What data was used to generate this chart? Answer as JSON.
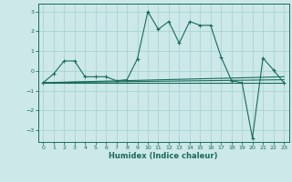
{
  "xlabel": "Humidex (Indice chaleur)",
  "ylabel": "",
  "background_color": "#cce8e8",
  "line_color": "#1a6b5a",
  "grid_color": "#aad4d4",
  "xlim": [
    -0.5,
    23.5
  ],
  "ylim": [
    -3.6,
    3.4
  ],
  "yticks": [
    -3,
    -2,
    -1,
    0,
    1,
    2,
    3
  ],
  "xticks": [
    0,
    1,
    2,
    3,
    4,
    5,
    6,
    7,
    8,
    9,
    10,
    11,
    12,
    13,
    14,
    15,
    16,
    17,
    18,
    19,
    20,
    21,
    22,
    23
  ],
  "series": [
    {
      "x": [
        0,
        1,
        2,
        3,
        4,
        5,
        6,
        7,
        8,
        9,
        10,
        11,
        12,
        13,
        14,
        15,
        16,
        17,
        18,
        19,
        20,
        21,
        22,
        23
      ],
      "y": [
        -0.6,
        -0.15,
        0.5,
        0.5,
        -0.3,
        -0.3,
        -0.3,
        -0.5,
        -0.45,
        0.6,
        3.0,
        2.1,
        2.5,
        1.4,
        2.5,
        2.3,
        2.3,
        0.7,
        -0.5,
        -0.6,
        -3.4,
        0.65,
        0.05,
        -0.6
      ],
      "marker": "+"
    },
    {
      "x": [
        0,
        23
      ],
      "y": [
        -0.6,
        -0.6
      ],
      "marker": null
    },
    {
      "x": [
        0,
        23
      ],
      "y": [
        -0.6,
        -0.45
      ],
      "marker": null
    },
    {
      "x": [
        0,
        23
      ],
      "y": [
        -0.6,
        -0.3
      ],
      "marker": null
    }
  ]
}
